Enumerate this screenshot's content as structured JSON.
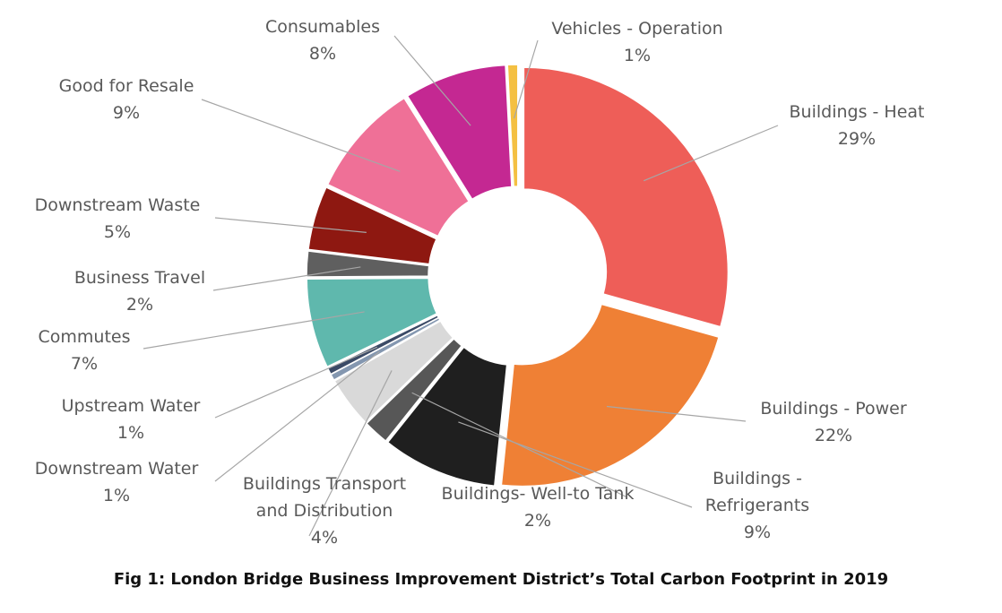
{
  "caption": "Fig 1: London Bridge Business Improvement District’s Total Carbon Footprint in 2019",
  "chart_data": {
    "type": "pie",
    "donut": true,
    "title": "",
    "legend": "none",
    "slices": [
      {
        "name": "Buildings - Heat",
        "label_lines": [
          "Buildings - Heat"
        ],
        "pct_label": "29%",
        "value": 29,
        "color": "#ee5e58"
      },
      {
        "name": "Buildings - Power",
        "label_lines": [
          "Buildings - Power"
        ],
        "pct_label": "22%",
        "value": 22,
        "color": "#ef8035"
      },
      {
        "name": "Buildings - Refrigerants",
        "label_lines": [
          "Buildings -",
          "Refrigerants"
        ],
        "pct_label": "9%",
        "value": 9,
        "color": "#1f1f1f"
      },
      {
        "name": "Buildings- Well-to Tank",
        "label_lines": [
          "Buildings- Well-to Tank"
        ],
        "pct_label": "2%",
        "value": 2,
        "color": "#575757"
      },
      {
        "name": "Buildings Transport and Distribution",
        "label_lines": [
          "Buildings Transport",
          "and Distribution"
        ],
        "pct_label": "4%",
        "value": 4,
        "color": "#d9d9d9"
      },
      {
        "name": "Downstream Water",
        "label_lines": [
          "Downstream Water"
        ],
        "pct_label": "1%",
        "value": 0.5,
        "color": "#8497b0"
      },
      {
        "name": "Upstream Water",
        "label_lines": [
          "Upstream Water"
        ],
        "pct_label": "1%",
        "value": 0.5,
        "color": "#3b4a66"
      },
      {
        "name": "Commutes",
        "label_lines": [
          "Commutes"
        ],
        "pct_label": "7%",
        "value": 7,
        "color": "#5fb8ad"
      },
      {
        "name": "Business Travel",
        "label_lines": [
          "Business Travel"
        ],
        "pct_label": "2%",
        "value": 2,
        "color": "#5f5f5f"
      },
      {
        "name": "Downstream Waste",
        "label_lines": [
          "Downstream Waste"
        ],
        "pct_label": "5%",
        "value": 5,
        "color": "#8e1811"
      },
      {
        "name": "Good for Resale",
        "label_lines": [
          "Good for Resale"
        ],
        "pct_label": "9%",
        "value": 9,
        "color": "#ef7097"
      },
      {
        "name": "Consumables",
        "label_lines": [
          "Consumables"
        ],
        "pct_label": "8%",
        "value": 8,
        "color": "#c42892"
      },
      {
        "name": "Vehicles - Operation",
        "label_lines": [
          "Vehicles - Operation"
        ],
        "pct_label": "1%",
        "value": 0.8,
        "color": "#f4c042"
      }
    ]
  }
}
